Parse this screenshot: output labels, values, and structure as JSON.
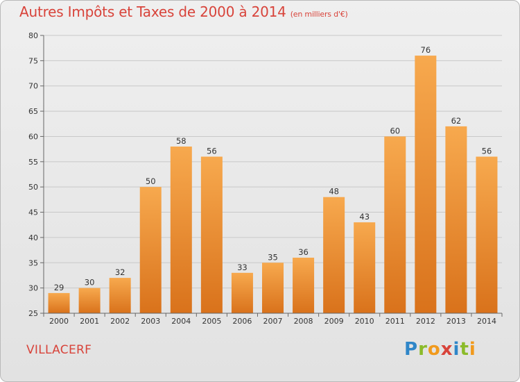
{
  "header": {
    "title": "Autres Impôts et Taxes de 2000 à 2014",
    "unit": "(en milliers d'€)"
  },
  "footer": {
    "commune": "VILLACERF",
    "logo": [
      "P",
      "r",
      "o",
      "x",
      "i",
      "t",
      "i"
    ]
  },
  "chart_data": {
    "type": "bar",
    "title": "Autres Impôts et Taxes de 2000 à 2014",
    "subtitle": "(en milliers d'€)",
    "xlabel": "",
    "ylabel": "",
    "categories": [
      "2000",
      "2001",
      "2002",
      "2003",
      "2004",
      "2005",
      "2006",
      "2007",
      "2008",
      "2009",
      "2010",
      "2011",
      "2012",
      "2013",
      "2014"
    ],
    "values": [
      29,
      30,
      32,
      50,
      58,
      56,
      33,
      35,
      36,
      48,
      43,
      60,
      76,
      62,
      56
    ],
    "ylim": [
      25,
      80
    ],
    "yticks": [
      25,
      30,
      35,
      40,
      45,
      50,
      55,
      60,
      65,
      70,
      75,
      80
    ],
    "grid": true,
    "colors": {
      "bar_top": "#f7a94e",
      "bar_bottom": "#d9721b",
      "grid": "#c8c8c8",
      "axis": "#666666"
    }
  }
}
